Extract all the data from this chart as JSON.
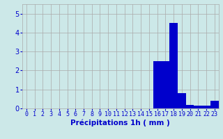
{
  "hours": [
    0,
    1,
    2,
    3,
    4,
    5,
    6,
    7,
    8,
    9,
    10,
    11,
    12,
    13,
    14,
    15,
    16,
    17,
    18,
    19,
    20,
    21,
    22,
    23
  ],
  "values": [
    0,
    0,
    0,
    0,
    0,
    0,
    0,
    0,
    0,
    0,
    0,
    0,
    0,
    0,
    0,
    0,
    2.5,
    2.5,
    4.5,
    0.8,
    0.2,
    0.15,
    0.15,
    0.4
  ],
  "bar_color": "#0000cc",
  "background_color": "#cce8e8",
  "grid_color": "#aaaaaa",
  "xlabel": "Précipitations 1h ( mm )",
  "xlabel_color": "#0000cc",
  "tick_color": "#0000cc",
  "ylim": [
    0,
    5.5
  ],
  "yticks": [
    0,
    1,
    2,
    3,
    4,
    5
  ],
  "tick_fontsize": 6.0,
  "xlabel_fontsize": 7.5
}
